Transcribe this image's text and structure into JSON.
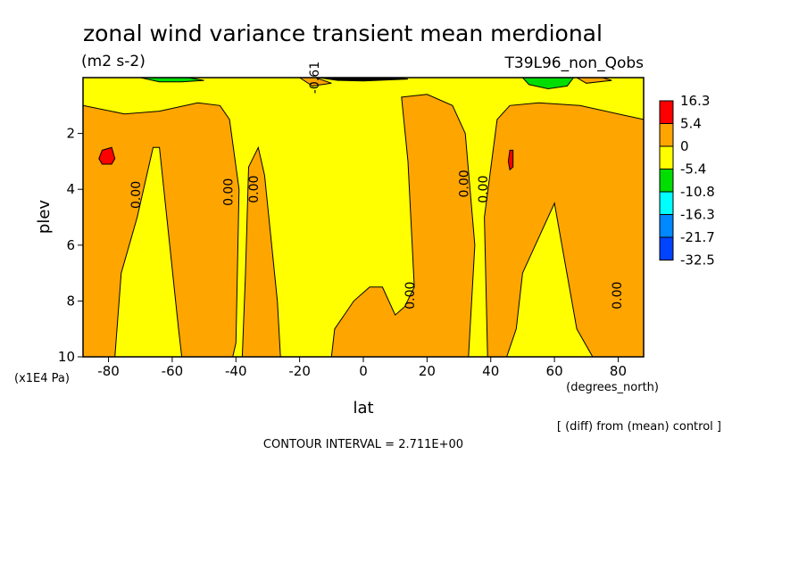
{
  "chart_data": {
    "type": "heatmap",
    "title": "zonal wind variance transient mean merdional",
    "units": "(m2 s-2)",
    "experiment": "T39L96_non_Qobs",
    "xlabel": "lat",
    "xunits": "(degrees_north)",
    "ylabel": "plev",
    "yunits": "(x1E4 Pa)",
    "xlim": [
      -88,
      88
    ],
    "ylim": [
      10,
      0
    ],
    "x_ticks": [
      -80,
      -60,
      -40,
      -20,
      0,
      20,
      40,
      60,
      80
    ],
    "x_tick_labels": [
      "-80",
      "-60",
      "-40",
      "-20",
      "0",
      "20",
      "40",
      "60",
      "80"
    ],
    "y_ticks": [
      2,
      4,
      6,
      8,
      10
    ],
    "y_tick_labels": [
      "2",
      "4",
      "6",
      "8",
      "10"
    ],
    "legend_levels": [
      "16.3",
      "5.4",
      "0",
      "-5.4",
      "-10.8",
      "-16.3",
      "-21.7",
      "-32.5"
    ],
    "legend_colors": [
      "#ff0000",
      "#ffa500",
      "#ffff00",
      "#00dd00",
      "#00ffff",
      "#0088ff",
      "#0044ff"
    ],
    "contour_interval": "CONTOUR INTERVAL = 2.711E+00",
    "diff_note": "[ (diff) from (mean) control ]",
    "contour_labels": [
      {
        "text": "0.00",
        "x": -70,
        "y": 4.2
      },
      {
        "text": "0.00",
        "x": -41,
        "y": 4.1
      },
      {
        "text": "0.00",
        "x": -33,
        "y": 4.0
      },
      {
        "text": "0.00",
        "x": 33,
        "y": 3.8
      },
      {
        "text": "0.00",
        "x": 39,
        "y": 4.0
      },
      {
        "text": "0.00",
        "x": 16,
        "y": 7.8
      },
      {
        "text": "0.00",
        "x": 81,
        "y": 7.8
      },
      {
        "text": "-0.61",
        "x": -14,
        "y": 0.0
      }
    ],
    "regions": [
      {
        "level": "0 to 5.4",
        "color": "#ffa500",
        "points": [
          [
            -88,
            1.0
          ],
          [
            -75,
            1.3
          ],
          [
            -64,
            1.2
          ],
          [
            -52,
            0.9
          ],
          [
            -45,
            1.0
          ],
          [
            -42,
            1.5
          ],
          [
            -39,
            4.0
          ],
          [
            -40,
            9.5
          ],
          [
            -41,
            10
          ],
          [
            -57,
            10
          ],
          [
            -58,
            9.0
          ],
          [
            -64,
            2.5
          ],
          [
            -66,
            2.5
          ],
          [
            -71,
            5.0
          ],
          [
            -76,
            7.0
          ],
          [
            -78,
            10
          ],
          [
            -88,
            10
          ]
        ]
      },
      {
        "level": "0 to 5.4",
        "color": "#ffa500",
        "points": [
          [
            -36,
            3.2
          ],
          [
            -33,
            2.5
          ],
          [
            -31,
            3.5
          ],
          [
            -27,
            8.0
          ],
          [
            -26,
            10
          ],
          [
            -38,
            10
          ],
          [
            -37,
            7.0
          ]
        ]
      },
      {
        "level": "0 to 5.4",
        "color": "#ffa500",
        "points": [
          [
            12,
            0.7
          ],
          [
            20,
            0.6
          ],
          [
            28,
            1.0
          ],
          [
            32,
            2.0
          ],
          [
            35,
            6.0
          ],
          [
            33,
            10
          ],
          [
            -10,
            10
          ],
          [
            -9,
            9.0
          ],
          [
            -6,
            8.5
          ],
          [
            -3,
            8.0
          ],
          [
            2,
            7.5
          ],
          [
            6,
            7.5
          ],
          [
            10,
            8.5
          ],
          [
            13,
            8.2
          ],
          [
            16,
            7.5
          ],
          [
            14,
            3.0
          ]
        ]
      },
      {
        "level": "0 to 5.4",
        "color": "#ffa500",
        "points": [
          [
            42,
            1.5
          ],
          [
            46,
            1.0
          ],
          [
            55,
            0.9
          ],
          [
            68,
            1.0
          ],
          [
            80,
            1.3
          ],
          [
            88,
            1.5
          ],
          [
            88,
            10
          ],
          [
            72,
            10
          ],
          [
            67,
            9.0
          ],
          [
            60,
            4.5
          ],
          [
            50,
            7.0
          ],
          [
            48,
            9.0
          ],
          [
            45,
            10
          ],
          [
            39,
            10
          ],
          [
            38,
            5.0
          ]
        ]
      },
      {
        "level": "0 to 5.4",
        "color": "#ffa500",
        "points": [
          [
            -20,
            0.0
          ],
          [
            -15,
            0.0
          ],
          [
            -10,
            0.2
          ],
          [
            -16,
            0.3
          ]
        ]
      },
      {
        "level": "0 to 5.4",
        "color": "#ffa500",
        "points": [
          [
            67,
            0.0
          ],
          [
            75,
            0.0
          ],
          [
            78,
            0.1
          ],
          [
            70,
            0.2
          ]
        ]
      },
      {
        "level": "5.4 to 16.3",
        "color": "#ff0000",
        "points": [
          [
            -82,
            2.6
          ],
          [
            -79,
            2.5
          ],
          [
            -78,
            2.9
          ],
          [
            -79,
            3.1
          ],
          [
            -82,
            3.1
          ],
          [
            -83,
            2.9
          ]
        ]
      },
      {
        "level": "5.4 to 16.3",
        "color": "#ff0000",
        "points": [
          [
            46,
            2.6
          ],
          [
            47,
            2.6
          ],
          [
            47,
            3.2
          ],
          [
            46,
            3.3
          ],
          [
            45.5,
            3.0
          ]
        ]
      },
      {
        "level": "-10.8 to -5.4",
        "color": "#00dd00",
        "points": [
          [
            -70,
            0.0
          ],
          [
            -55,
            0.0
          ],
          [
            -50,
            0.1
          ],
          [
            -57,
            0.15
          ],
          [
            -64,
            0.15
          ]
        ]
      },
      {
        "level": "-10.8 to -5.4",
        "color": "#00dd00",
        "points": [
          [
            50,
            0.0
          ],
          [
            66,
            0.0
          ],
          [
            64,
            0.3
          ],
          [
            58,
            0.4
          ],
          [
            52,
            0.25
          ]
        ]
      },
      {
        "level": "below -32.5",
        "color": "#000000",
        "points": [
          [
            -14,
            0.0
          ],
          [
            10,
            0.0
          ],
          [
            14,
            0.05
          ],
          [
            0,
            0.12
          ],
          [
            -8,
            0.1
          ]
        ]
      }
    ]
  }
}
